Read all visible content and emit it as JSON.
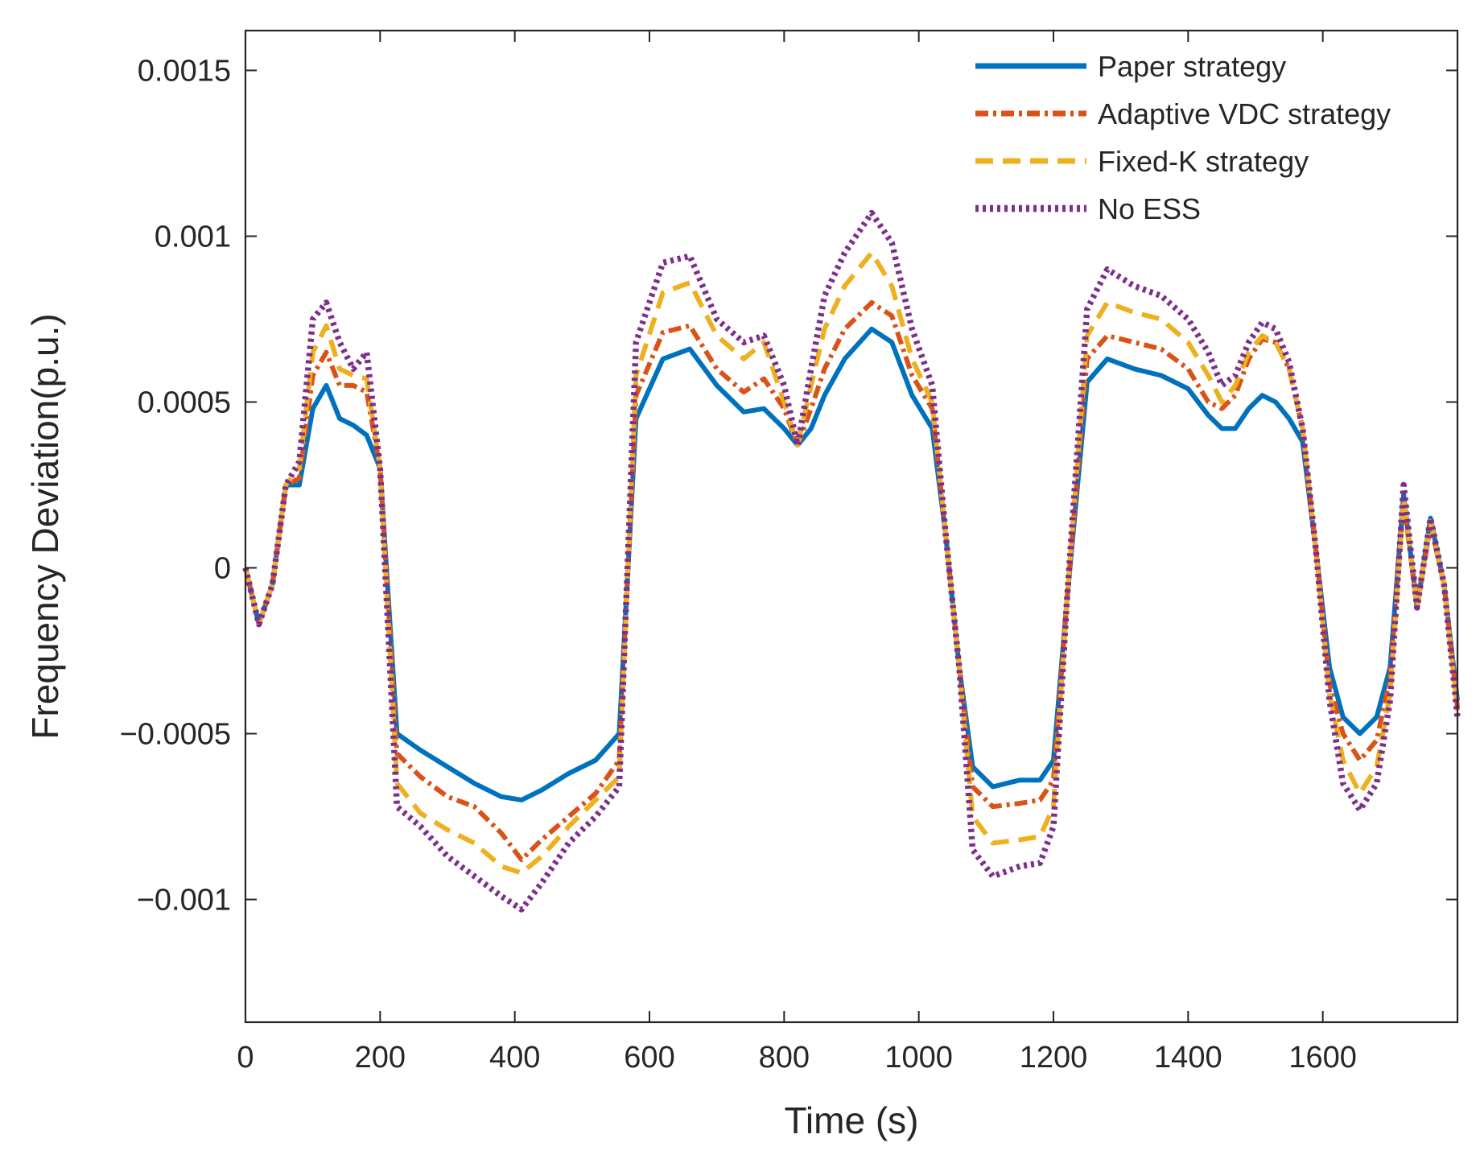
{
  "chart_data": {
    "type": "line",
    "title": "",
    "xlabel": "Time (s)",
    "ylabel": "Frequency Deviation(p.u.)",
    "xlim": [
      0,
      1800
    ],
    "ylim": [
      -0.00137,
      0.00162
    ],
    "xticks": [
      0,
      200,
      400,
      600,
      800,
      1000,
      1200,
      1400,
      1600
    ],
    "xtick_labels": [
      "0",
      "200",
      "400",
      "600",
      "800",
      "1000",
      "1200",
      "1400",
      "1600"
    ],
    "yticks": [
      0.0015,
      0.001,
      0.0005,
      0,
      -0.0005,
      -0.001
    ],
    "ytick_labels": [
      "0.0015",
      "0.001",
      "0.0005",
      "0",
      "−0.0005",
      "−0.001"
    ],
    "grid": false,
    "legend_position": "top-right",
    "x": [
      0,
      20,
      40,
      60,
      80,
      100,
      120,
      140,
      160,
      180,
      200,
      225,
      260,
      300,
      340,
      380,
      410,
      440,
      480,
      520,
      555,
      580,
      620,
      660,
      700,
      740,
      770,
      800,
      820,
      840,
      860,
      890,
      930,
      960,
      990,
      1020,
      1040,
      1060,
      1080,
      1110,
      1150,
      1180,
      1200,
      1220,
      1250,
      1280,
      1320,
      1360,
      1400,
      1430,
      1450,
      1470,
      1490,
      1510,
      1530,
      1550,
      1570,
      1590,
      1610,
      1630,
      1655,
      1680,
      1700,
      1720,
      1740,
      1760,
      1780,
      1800
    ],
    "series": [
      {
        "name": "Paper strategy",
        "color": "#0072BD",
        "dash": "solid",
        "values": [
          0,
          -0.00017,
          -5e-05,
          0.00025,
          0.00025,
          0.00048,
          0.00055,
          0.00045,
          0.00043,
          0.0004,
          0.0003,
          -0.0005,
          -0.00055,
          -0.0006,
          -0.00065,
          -0.00069,
          -0.0007,
          -0.00067,
          -0.00062,
          -0.00058,
          -0.0005,
          0.00045,
          0.00063,
          0.00066,
          0.00055,
          0.00047,
          0.00048,
          0.00042,
          0.00037,
          0.00042,
          0.00052,
          0.00063,
          0.00072,
          0.00068,
          0.00052,
          0.00042,
          0.0001,
          -0.0003,
          -0.0006,
          -0.00066,
          -0.00064,
          -0.00064,
          -0.00058,
          -0.0001,
          0.00056,
          0.00063,
          0.0006,
          0.00058,
          0.00054,
          0.00046,
          0.00042,
          0.00042,
          0.00048,
          0.00052,
          0.0005,
          0.00045,
          0.00038,
          5e-05,
          -0.0003,
          -0.00045,
          -0.0005,
          -0.00045,
          -0.0003,
          0.00022,
          -0.00012,
          0.00015,
          -5e-05,
          -0.0004
        ]
      },
      {
        "name": "Adaptive VDC strategy",
        "color": "#D95319",
        "dash": "dashdot",
        "values": [
          0,
          -0.00017,
          -5e-05,
          0.00025,
          0.00027,
          0.00058,
          0.00065,
          0.00055,
          0.00055,
          0.00053,
          0.0003,
          -0.00056,
          -0.00063,
          -0.00069,
          -0.00072,
          -0.0008,
          -0.00088,
          -0.00082,
          -0.00075,
          -0.00068,
          -0.00058,
          0.00052,
          0.00071,
          0.00073,
          0.0006,
          0.00053,
          0.00057,
          0.00048,
          0.00037,
          0.00048,
          0.0006,
          0.00072,
          0.0008,
          0.00076,
          0.00058,
          0.00048,
          0.0001,
          -0.0003,
          -0.00066,
          -0.00072,
          -0.00071,
          -0.0007,
          -0.00064,
          -0.0001,
          0.00063,
          0.0007,
          0.00068,
          0.00066,
          0.0006,
          0.0005,
          0.00048,
          0.00052,
          0.00063,
          0.00069,
          0.00068,
          0.0006,
          0.00042,
          5e-05,
          -0.00035,
          -0.0005,
          -0.00058,
          -0.00052,
          -0.00033,
          0.0002,
          -0.00012,
          0.00013,
          -5e-05,
          -0.00042
        ]
      },
      {
        "name": "Fixed-K strategy",
        "color": "#EDB120",
        "dash": "dashed",
        "values": [
          0,
          -0.00017,
          -5e-05,
          0.00025,
          0.0003,
          0.00065,
          0.00073,
          0.0006,
          0.00058,
          0.00057,
          0.0003,
          -0.00065,
          -0.00074,
          -0.00079,
          -0.00083,
          -0.0009,
          -0.00092,
          -0.00087,
          -0.00078,
          -0.0007,
          -0.00063,
          0.00058,
          0.00083,
          0.00086,
          0.0007,
          0.00063,
          0.00068,
          0.0005,
          0.00037,
          0.00055,
          0.00072,
          0.00085,
          0.00095,
          0.00085,
          0.00063,
          0.0005,
          0.0001,
          -0.0003,
          -0.00075,
          -0.00083,
          -0.00082,
          -0.00081,
          -0.00072,
          -0.0001,
          0.0007,
          0.0008,
          0.00077,
          0.00075,
          0.00068,
          0.00058,
          0.0005,
          0.00055,
          0.00065,
          0.0007,
          0.00068,
          0.0006,
          0.00042,
          5e-05,
          -0.00038,
          -0.00058,
          -0.00068,
          -0.0006,
          -0.00038,
          0.00021,
          -0.00012,
          0.00014,
          -5e-05,
          -0.00043
        ]
      },
      {
        "name": "No ESS",
        "color": "#7E2F8E",
        "dash": "dotted",
        "values": [
          0,
          -0.00017,
          -5e-05,
          0.00025,
          0.00032,
          0.00075,
          0.0008,
          0.00068,
          0.0006,
          0.00065,
          0.0003,
          -0.00072,
          -0.00078,
          -0.00087,
          -0.00093,
          -0.00099,
          -0.00103,
          -0.00095,
          -0.00083,
          -0.00075,
          -0.00066,
          0.00068,
          0.00092,
          0.00094,
          0.00075,
          0.00068,
          0.0007,
          0.00055,
          0.00037,
          0.0006,
          0.00082,
          0.00095,
          0.00107,
          0.00098,
          0.00072,
          0.00055,
          0.0001,
          -0.0003,
          -0.00085,
          -0.00093,
          -0.0009,
          -0.00089,
          -0.00078,
          -0.0001,
          0.00078,
          0.0009,
          0.00085,
          0.00082,
          0.00075,
          0.00065,
          0.00055,
          0.00058,
          0.00068,
          0.00074,
          0.00072,
          0.00062,
          0.00042,
          5e-05,
          -0.0004,
          -0.00065,
          -0.00073,
          -0.00065,
          -0.0004,
          0.00025,
          -0.00012,
          0.00015,
          -5e-05,
          -0.00045
        ]
      }
    ]
  }
}
